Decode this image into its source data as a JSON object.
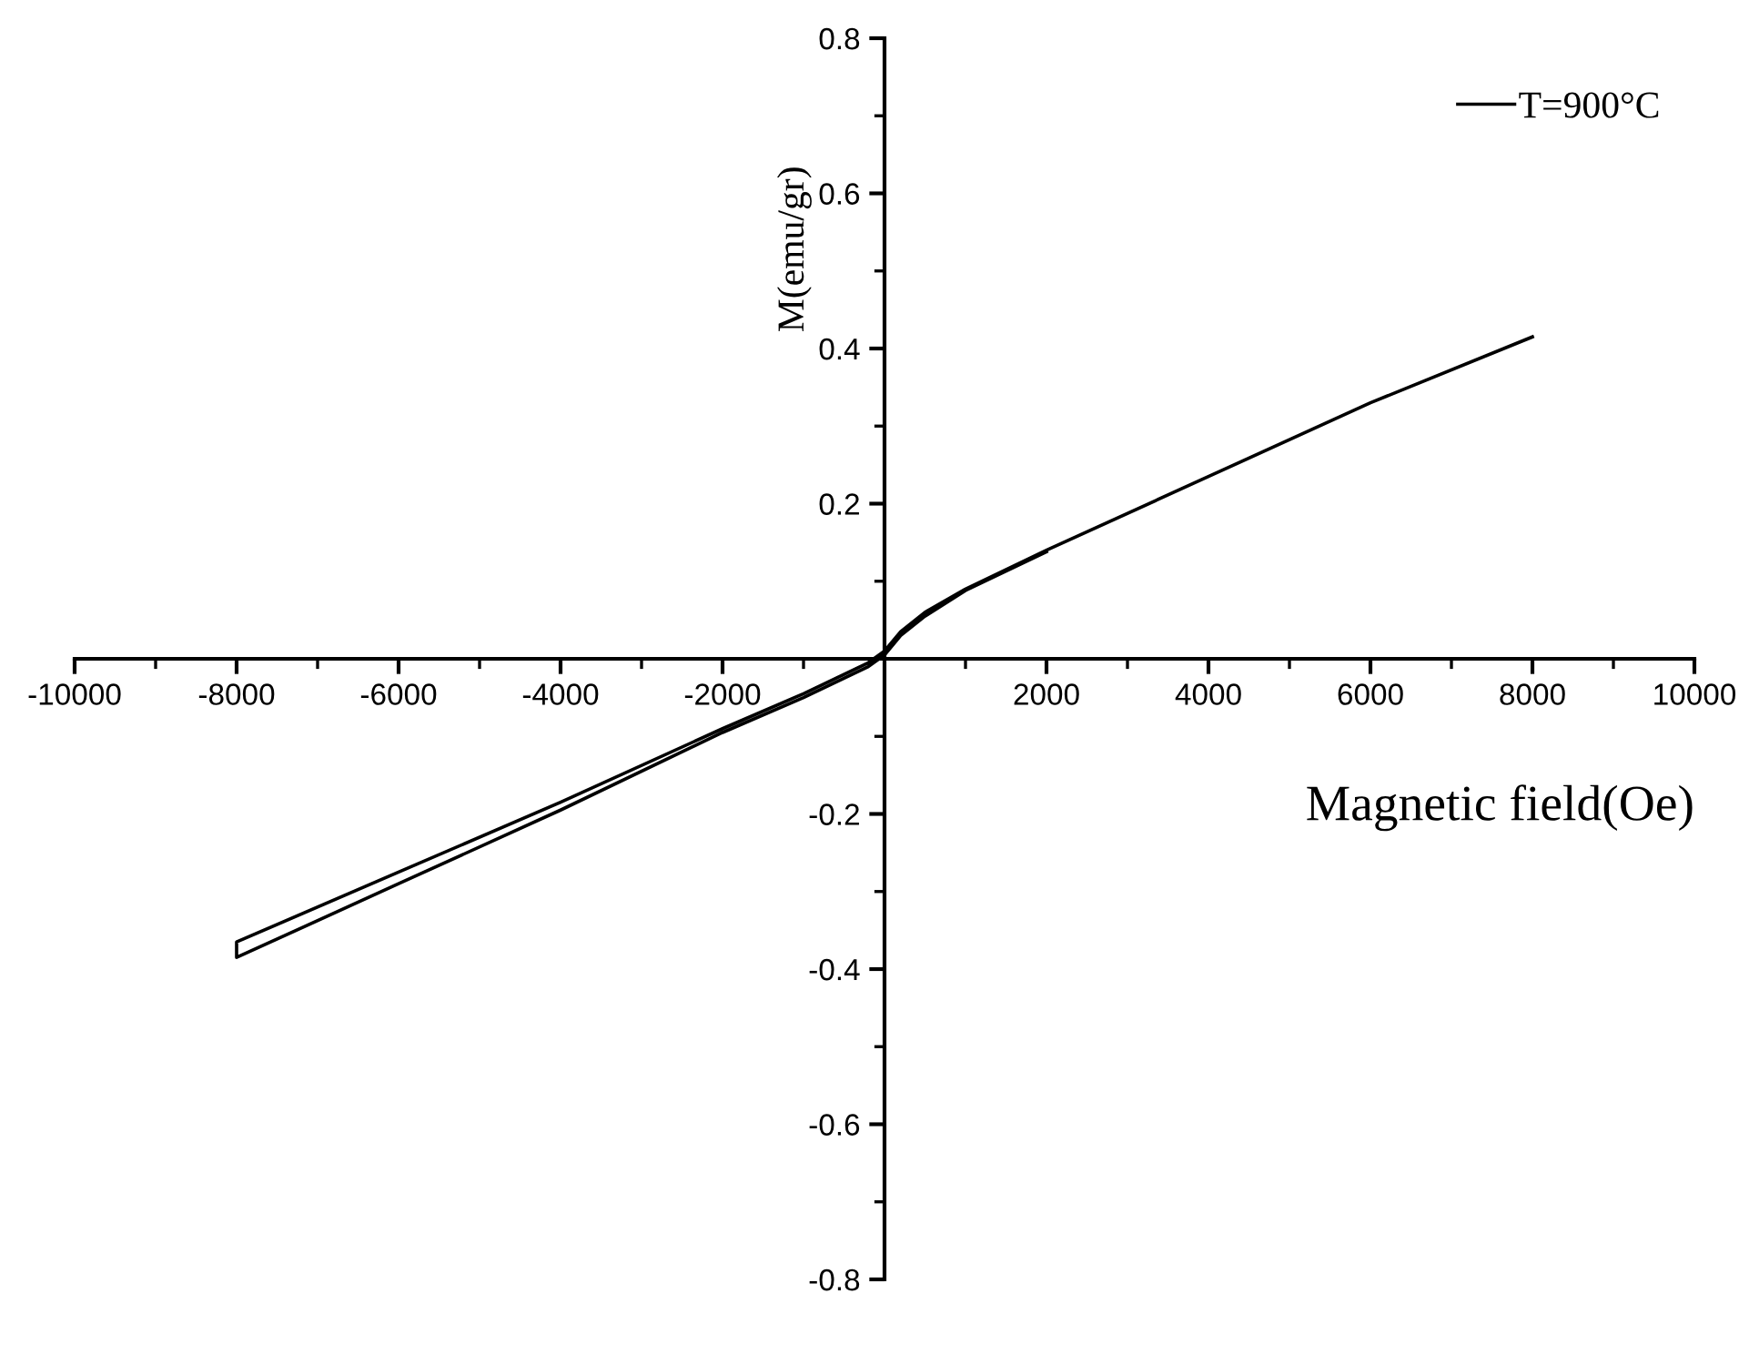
{
  "chart_data": {
    "type": "line",
    "xlabel": "Magnetic field(Oe)",
    "ylabel": "M(emu/gr)",
    "series": [
      {
        "name": "T=900°C",
        "color": "#000000",
        "x": [
          8000,
          6000,
          4000,
          2000,
          1000,
          500,
          200,
          0,
          -200,
          -500,
          -1000,
          -2000,
          -4000,
          -6000,
          -8000,
          -8000,
          -6000,
          -4000,
          -2000,
          -1000,
          -500,
          -200,
          0,
          200,
          500,
          1000,
          2000
        ],
        "values": [
          0.415,
          0.33,
          0.235,
          0.14,
          0.09,
          0.06,
          0.035,
          0.01,
          -0.005,
          -0.02,
          -0.045,
          -0.09,
          -0.185,
          -0.275,
          -0.365,
          -0.385,
          -0.29,
          -0.195,
          -0.095,
          -0.05,
          -0.025,
          -0.01,
          0.005,
          0.03,
          0.055,
          0.088,
          0.138
        ]
      }
    ],
    "xlim": [
      -10000,
      10000
    ],
    "xticks": [
      -10000,
      -8000,
      -6000,
      -4000,
      -2000,
      2000,
      4000,
      6000,
      8000,
      10000
    ],
    "ylim": [
      -0.8,
      0.8
    ],
    "yticks": [
      -0.8,
      -0.6,
      -0.4,
      -0.2,
      0.2,
      0.4,
      0.6,
      0.8
    ],
    "grid": false,
    "legend": "top right",
    "marker": "none",
    "line_style": "solid"
  }
}
